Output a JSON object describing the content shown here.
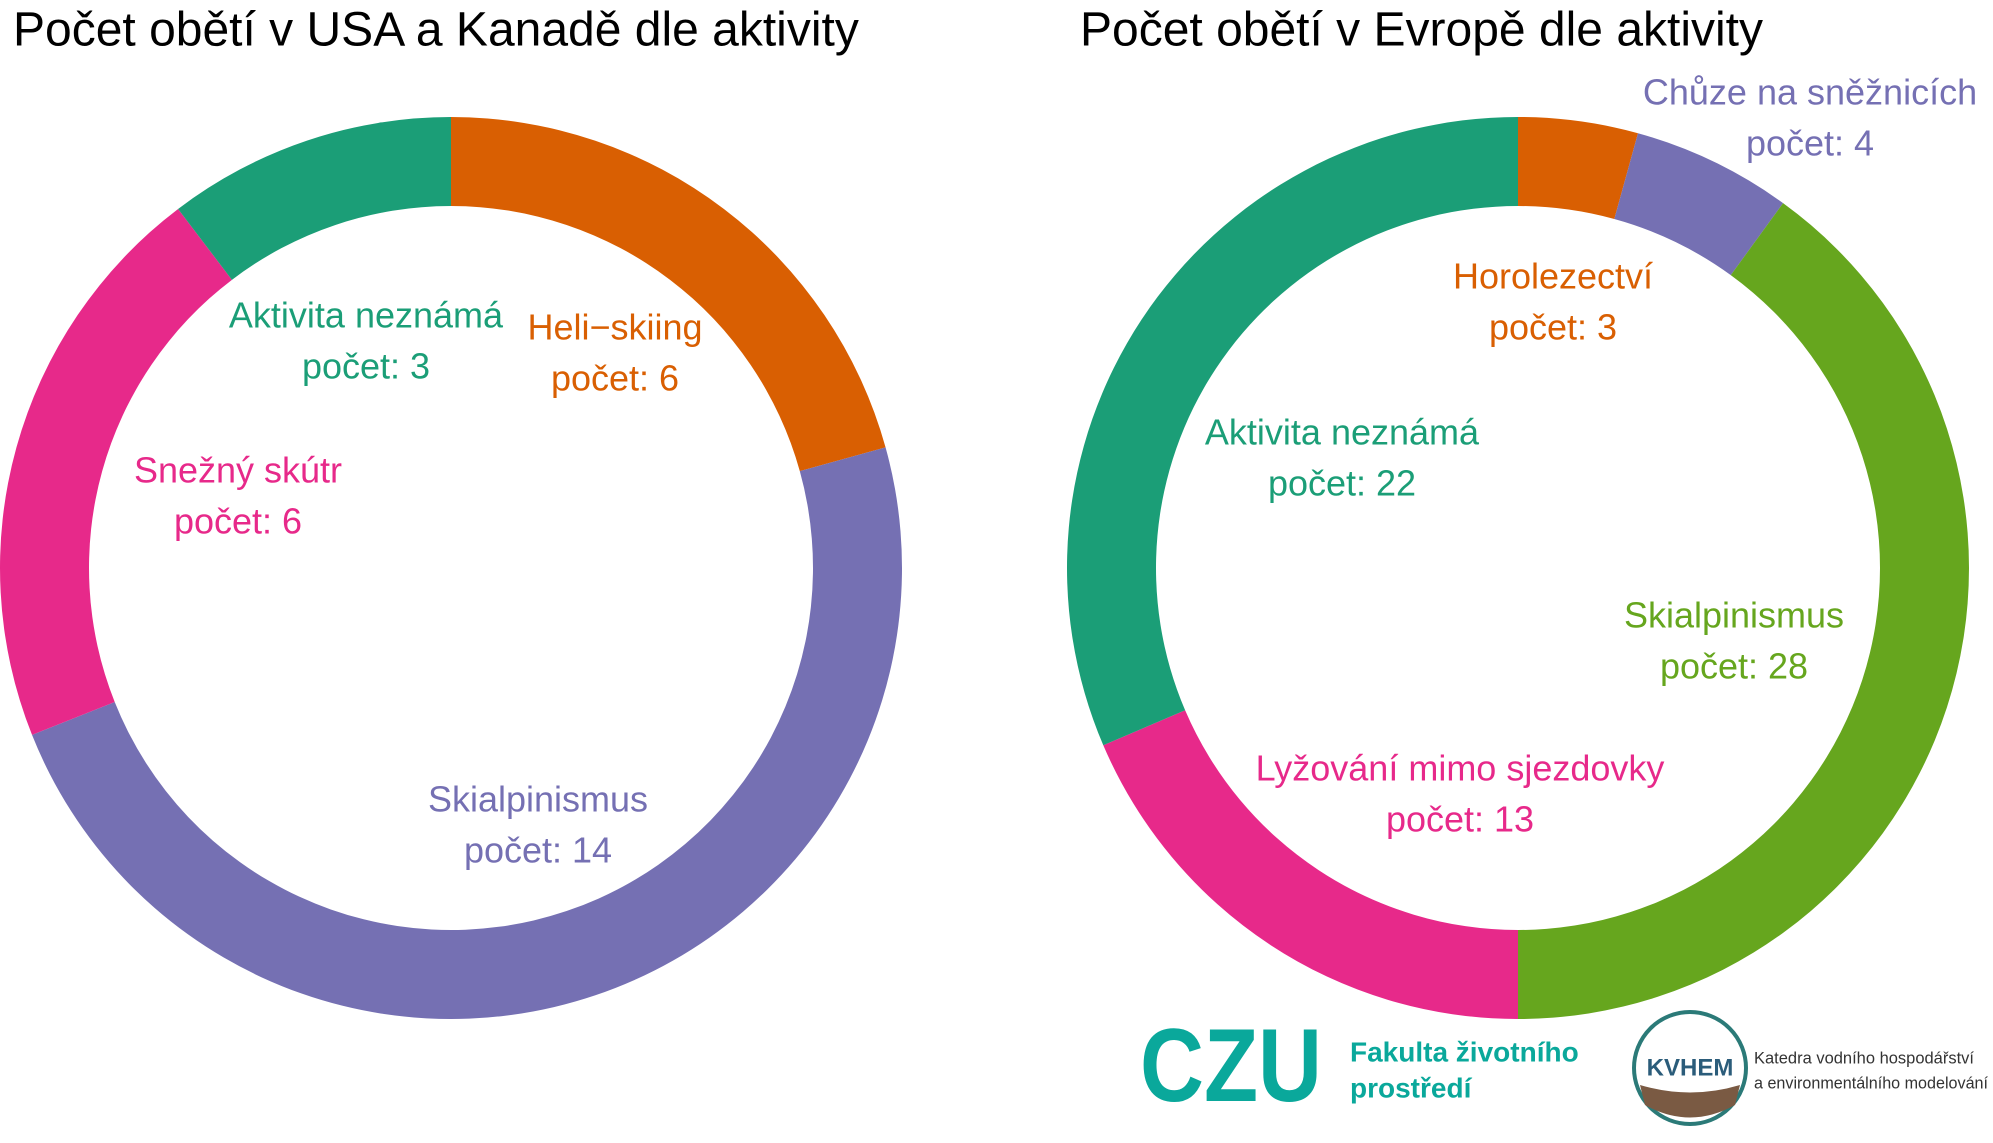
{
  "chart_data": [
    {
      "type": "donut",
      "title": "Počet obětí v USA a Kanadě dle aktivity",
      "categories": [
        "Heli−skiing",
        "Skialpinismus",
        "Snežný skútr",
        "Aktivita neznámá"
      ],
      "values": [
        6,
        14,
        6,
        3
      ],
      "value_labels": [
        "počet: 6",
        "počet: 14",
        "počet: 6",
        "počet: 3"
      ],
      "colors": [
        "#d95f02",
        "#7570b3",
        "#e7298a",
        "#1b9e77"
      ]
    },
    {
      "type": "donut",
      "title": "Počet obětí v Evropě dle aktivity",
      "categories": [
        "Horolezectví",
        "Chůze na sněžnicích",
        "Skialpinismus",
        "Lyžování mimo sjezdovky",
        "Aktivita neznámá"
      ],
      "values": [
        3,
        4,
        28,
        13,
        22
      ],
      "value_labels": [
        "počet: 3",
        "počet: 4",
        "počet: 28",
        "počet: 13",
        "počet: 22"
      ],
      "colors": [
        "#d95f02",
        "#7570b3",
        "#66a61e",
        "#e7298a",
        "#1b9e77"
      ]
    }
  ],
  "logos": {
    "czu": "CZU",
    "faculty": [
      "Fakulta životního",
      "prostředí"
    ],
    "kvhem": "KVHEM",
    "department": [
      "Katedra vodního hospodářství",
      "a environmentálního modelování"
    ]
  }
}
